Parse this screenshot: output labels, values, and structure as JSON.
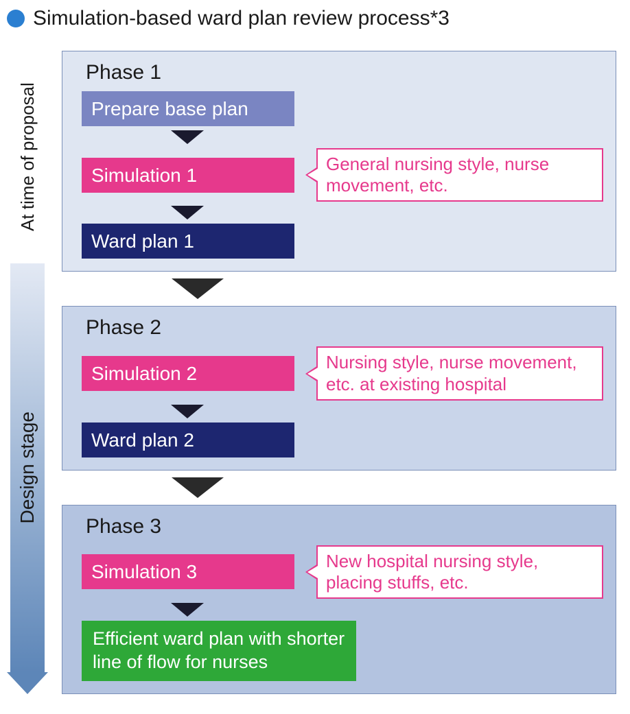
{
  "header": {
    "bullet_color": "#2b7fd1",
    "title": "Simulation-based ward plan review process*3"
  },
  "stages": {
    "label1": "At time of proposal",
    "label2": "Design stage",
    "arrow_gradient_top": "#e3e9f4",
    "arrow_gradient_bottom": "#5d86b8",
    "arrow_head_color": "#5d86b8"
  },
  "colors": {
    "phase1_bg": "#dfe6f2",
    "phase2_bg": "#c9d5ea",
    "phase3_bg": "#b3c3e0",
    "prepare_bg": "#7a85c2",
    "simulation_bg": "#e6398c",
    "wardplan_bg": "#1d2670",
    "final_bg": "#2ea838",
    "small_arrow": "#1a1a2e",
    "big_arrow": "#2a2a2a"
  },
  "phase1": {
    "title": "Phase 1",
    "prepare": "Prepare base plan",
    "sim": "Simulation 1",
    "callout": "General nursing style, nurse movement, etc.",
    "plan": "Ward plan 1"
  },
  "phase2": {
    "title": "Phase 2",
    "sim": "Simulation 2",
    "callout": "Nursing style, nurse movement, etc. at existing hospital",
    "plan": "Ward plan 2"
  },
  "phase3": {
    "title": "Phase 3",
    "sim": "Simulation 3",
    "callout": "New hospital nursing style, placing stuffs, etc.",
    "final": "Efficient ward plan with shorter line of flow for nurses"
  }
}
